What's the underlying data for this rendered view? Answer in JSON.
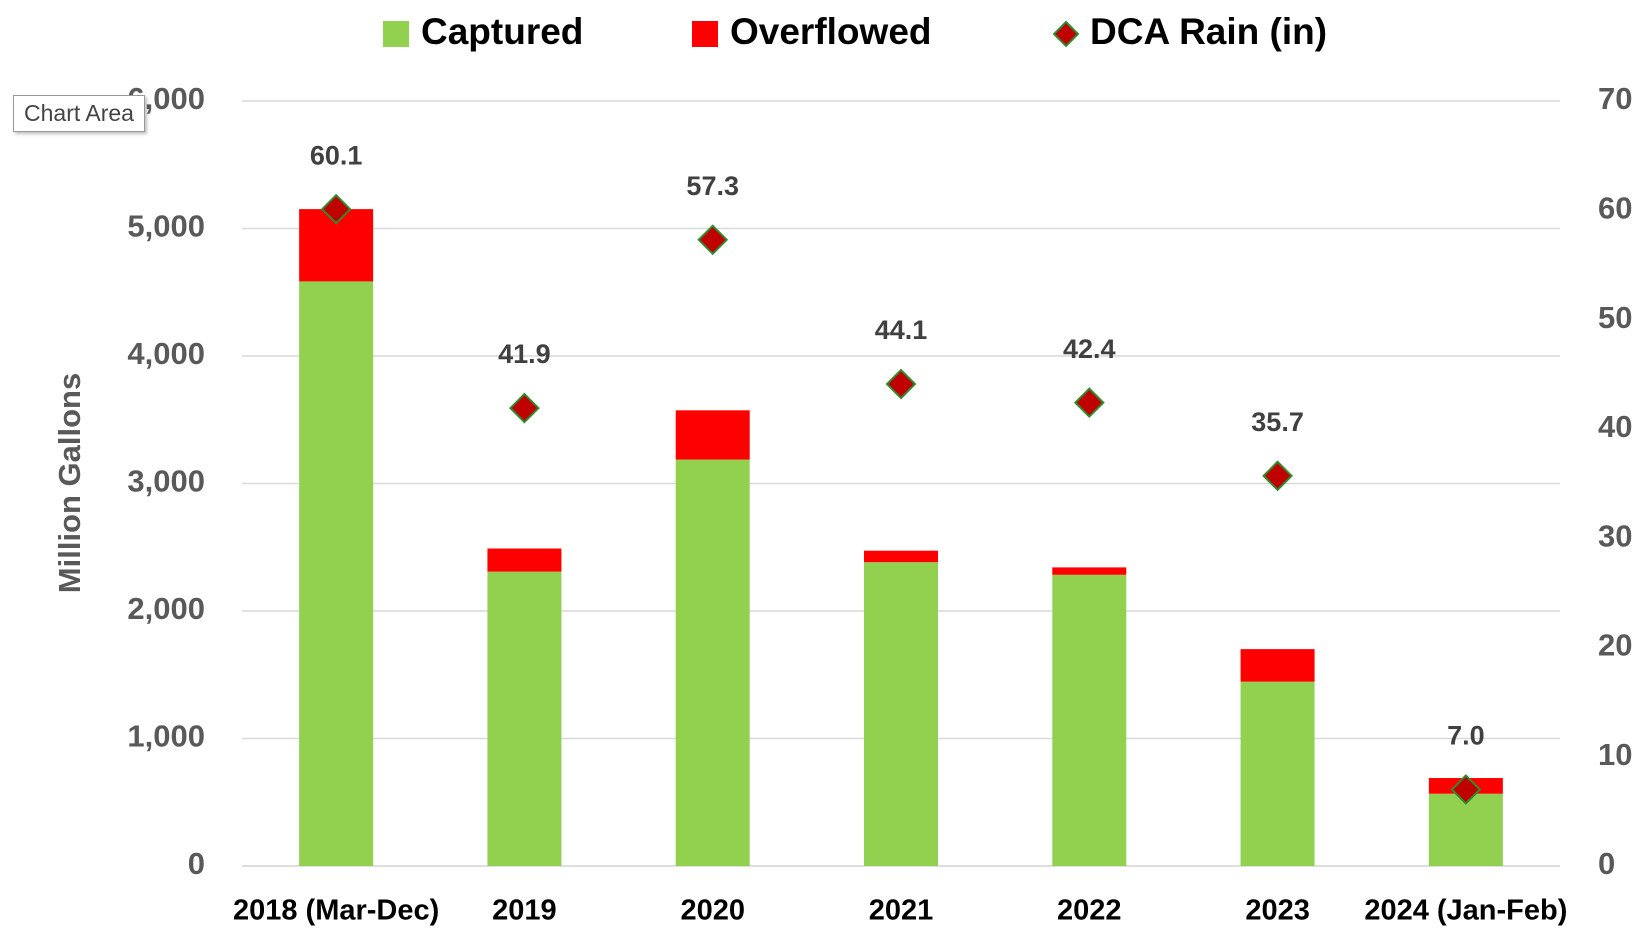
{
  "chart_data": {
    "type": "bar",
    "stacked": true,
    "y_label": "Million Gallons",
    "tooltip": "Chart Area",
    "categories": [
      "2018 (Mar-Dec)",
      "2019",
      "2020",
      "2021",
      "2022",
      "2023",
      "2024 (Jan-Feb)"
    ],
    "series": [
      {
        "name": "Captured",
        "color": "#92d050",
        "values": [
          4585,
          2309,
          3188,
          2383,
          2284,
          1446,
          567
        ]
      },
      {
        "name": "Overflowed",
        "color": "#ff0000",
        "values": [
          567,
          181,
          386,
          90,
          58,
          255,
          123
        ]
      },
      {
        "name": "DCA Rain (in)",
        "color": "#c00000",
        "type": "scatter",
        "axis": "y2",
        "values": [
          60.1,
          41.9,
          57.3,
          44.1,
          42.4,
          35.7,
          7.0
        ],
        "value_labels": [
          "60.1",
          "41.9",
          "57.3",
          "44.1",
          "42.4",
          "35.7",
          "7.0"
        ]
      }
    ],
    "ylim": [
      0,
      6000
    ],
    "yticks": [
      0,
      {
        "value": 1000,
        "label": "1,000"
      },
      {
        "value": 2000,
        "label": "2,000"
      },
      {
        "value": 3000,
        "label": "3,000"
      },
      {
        "value": 4000,
        "label": "4,000"
      },
      {
        "value": 5000,
        "label": "5,000"
      },
      {
        "value": 6000,
        "label": "6,000"
      }
    ],
    "y2lim": [
      0,
      70
    ],
    "y2ticks": [
      0,
      10,
      20,
      30,
      40,
      50,
      60,
      70
    ],
    "grid": true,
    "legend": "top"
  }
}
